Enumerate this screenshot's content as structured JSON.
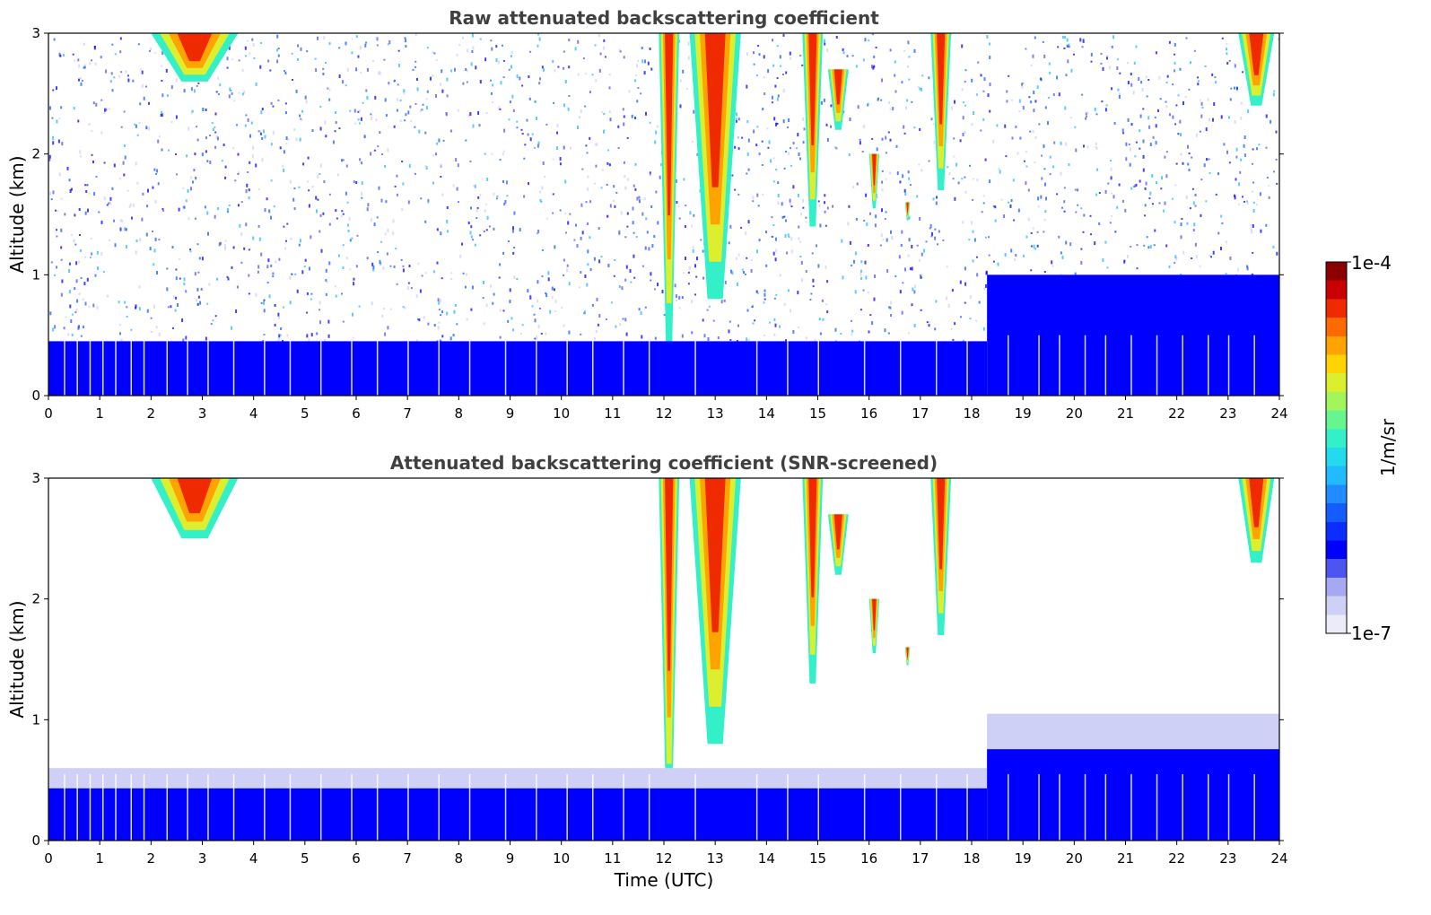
{
  "chart_data": [
    {
      "type": "heatmap",
      "title": "Raw attenuated backscattering coefficient",
      "xlabel": "",
      "ylabel": "Altitude (km)",
      "xlim": [
        0,
        24
      ],
      "ylim": [
        0,
        3
      ],
      "xticks": [
        "0",
        "1",
        "2",
        "3",
        "4",
        "5",
        "6",
        "7",
        "8",
        "9",
        "10",
        "11",
        "12",
        "13",
        "14",
        "15",
        "16",
        "17",
        "18",
        "19",
        "20",
        "21",
        "22",
        "23",
        "24"
      ],
      "yticks": [
        "0",
        "1",
        "2",
        "3"
      ],
      "grid": false,
      "features": [
        {
          "kind": "cloud",
          "x": [
            2.0,
            3.7
          ],
          "y": [
            2.6,
            3.0
          ]
        },
        {
          "kind": "cloud",
          "x": [
            11.9,
            12.3
          ],
          "y": [
            0.4,
            3.0
          ]
        },
        {
          "kind": "cloud",
          "x": [
            12.5,
            13.5
          ],
          "y": [
            0.8,
            3.0
          ]
        },
        {
          "kind": "cloud",
          "x": [
            14.7,
            15.1
          ],
          "y": [
            1.4,
            3.0
          ]
        },
        {
          "kind": "cloud",
          "x": [
            15.2,
            15.6
          ],
          "y": [
            2.2,
            2.7
          ]
        },
        {
          "kind": "cloud",
          "x": [
            16.0,
            16.2
          ],
          "y": [
            1.55,
            2.0
          ]
        },
        {
          "kind": "cloud",
          "x": [
            16.7,
            16.8
          ],
          "y": [
            1.45,
            1.6
          ]
        },
        {
          "kind": "cloud",
          "x": [
            17.2,
            17.6
          ],
          "y": [
            1.7,
            3.0
          ]
        },
        {
          "kind": "cloud",
          "x": [
            23.2,
            23.9
          ],
          "y": [
            2.4,
            3.0
          ]
        },
        {
          "kind": "boundary-layer",
          "x": [
            0,
            18.3
          ],
          "y": [
            0,
            0.45
          ]
        },
        {
          "kind": "boundary-layer",
          "x": [
            18.3,
            24
          ],
          "y": [
            0,
            1.0
          ]
        }
      ]
    },
    {
      "type": "heatmap",
      "title": "Attenuated backscattering coefficient (SNR-screened)",
      "xlabel": "Time (UTC)",
      "ylabel": "Altitude (km)",
      "xlim": [
        0,
        24
      ],
      "ylim": [
        0,
        3
      ],
      "xticks": [
        "0",
        "1",
        "2",
        "3",
        "4",
        "5",
        "6",
        "7",
        "8",
        "9",
        "10",
        "11",
        "12",
        "13",
        "14",
        "15",
        "16",
        "17",
        "18",
        "19",
        "20",
        "21",
        "22",
        "23",
        "24"
      ],
      "yticks": [
        "0",
        "1",
        "2",
        "3"
      ],
      "grid": false,
      "features": [
        {
          "kind": "cloud",
          "x": [
            2.0,
            3.7
          ],
          "y": [
            2.5,
            3.0
          ]
        },
        {
          "kind": "cloud",
          "x": [
            11.9,
            12.3
          ],
          "y": [
            0.25,
            3.0
          ]
        },
        {
          "kind": "cloud",
          "x": [
            12.5,
            13.5
          ],
          "y": [
            0.8,
            3.0
          ]
        },
        {
          "kind": "cloud",
          "x": [
            14.7,
            15.1
          ],
          "y": [
            1.3,
            3.0
          ]
        },
        {
          "kind": "cloud",
          "x": [
            15.2,
            15.6
          ],
          "y": [
            2.2,
            2.7
          ]
        },
        {
          "kind": "cloud",
          "x": [
            16.0,
            16.2
          ],
          "y": [
            1.55,
            2.0
          ]
        },
        {
          "kind": "cloud",
          "x": [
            16.7,
            16.8
          ],
          "y": [
            1.45,
            1.6
          ]
        },
        {
          "kind": "cloud",
          "x": [
            17.2,
            17.6
          ],
          "y": [
            1.7,
            3.0
          ]
        },
        {
          "kind": "cloud",
          "x": [
            23.2,
            23.9
          ],
          "y": [
            2.3,
            3.0
          ]
        },
        {
          "kind": "boundary-layer",
          "x": [
            0,
            18.3
          ],
          "y": [
            0,
            0.6
          ]
        },
        {
          "kind": "boundary-layer",
          "x": [
            18.3,
            24
          ],
          "y": [
            0,
            1.05
          ]
        }
      ]
    }
  ],
  "colorbar": {
    "label": "1/m/sr",
    "min_label": "1e-7",
    "max_label": "1e-4",
    "colors": [
      "#ececf8",
      "#cfd0f5",
      "#a6a9f2",
      "#4d55f0",
      "#0000ff",
      "#0b2dff",
      "#145cff",
      "#1f8cff",
      "#22bbff",
      "#22dcee",
      "#33f0c8",
      "#66f58f",
      "#a3f55c",
      "#dcee2e",
      "#ffd400",
      "#ffa300",
      "#ff6a00",
      "#f02a00",
      "#c80000",
      "#8b0000"
    ]
  }
}
